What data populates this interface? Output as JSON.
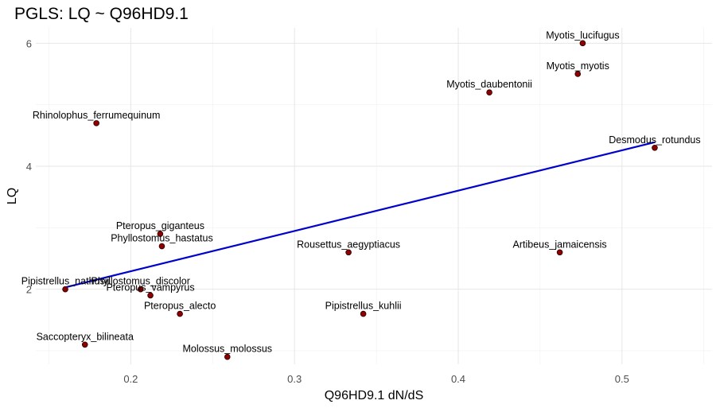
{
  "chart_data": {
    "type": "scatter",
    "title": "PGLS: LQ ~ Q96HD9.1",
    "xlabel": "Q96HD9.1 dN/dS",
    "ylabel": "LQ",
    "xlim": [
      0.142,
      0.555
    ],
    "ylim": [
      0.78,
      6.25
    ],
    "x_ticks": [
      0.2,
      0.3,
      0.4,
      0.5
    ],
    "y_ticks": [
      2,
      4,
      6
    ],
    "grid": true,
    "point_color": "#8b0000",
    "line_color": "#0000cd",
    "points": [
      {
        "label": "Myotis_lucifugus",
        "x": 0.476,
        "y": 6.0
      },
      {
        "label": "Myotis_myotis",
        "x": 0.473,
        "y": 5.5
      },
      {
        "label": "Myotis_daubentonii",
        "x": 0.419,
        "y": 5.2
      },
      {
        "label": "Rhinolophus_ferrumequinum",
        "x": 0.179,
        "y": 4.7
      },
      {
        "label": "Desmodus_rotundus",
        "x": 0.52,
        "y": 4.3
      },
      {
        "label": "Pteropus_giganteus",
        "x": 0.218,
        "y": 2.9
      },
      {
        "label": "Phyllostomus_hastatus",
        "x": 0.219,
        "y": 2.7
      },
      {
        "label": "Rousettus_aegyptiacus",
        "x": 0.333,
        "y": 2.6
      },
      {
        "label": "Artibeus_jamaicensis",
        "x": 0.462,
        "y": 2.6
      },
      {
        "label": "Pipistrellus_nathusii",
        "x": 0.16,
        "y": 2.0
      },
      {
        "label": "Phyllostomus_discolor",
        "x": 0.206,
        "y": 2.0
      },
      {
        "label": "Pteropus_vampyrus",
        "x": 0.212,
        "y": 1.9
      },
      {
        "label": "Pteropus_alecto",
        "x": 0.23,
        "y": 1.6
      },
      {
        "label": "Pipistrellus_kuhlii",
        "x": 0.342,
        "y": 1.6
      },
      {
        "label": "Saccopteryx_bilineata",
        "x": 0.172,
        "y": 1.1
      },
      {
        "label": "Molossus_molossus",
        "x": 0.259,
        "y": 0.9
      }
    ],
    "fit_line": {
      "x": [
        0.16,
        0.52
      ],
      "y": [
        2.03,
        4.39
      ]
    }
  }
}
